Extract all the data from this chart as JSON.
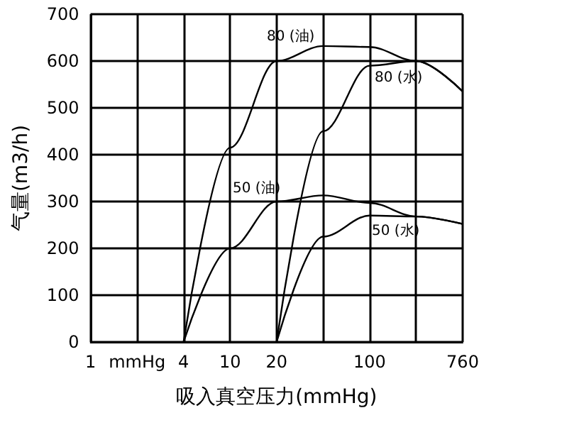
{
  "chart_data": {
    "type": "line",
    "xlabel": "吸入真空压力(mmHg)",
    "ylabel": "气量(m3/h)",
    "categories": [
      "1",
      "mmHg",
      "4",
      "10",
      "20",
      null,
      "100",
      null,
      "760"
    ],
    "ylim": [
      0,
      700
    ],
    "yticks": [
      0,
      100,
      200,
      300,
      400,
      500,
      600,
      700
    ],
    "grid": true,
    "marker": "none",
    "line_style": "solid",
    "series": [
      {
        "color": "#000000",
        "values": [
          null,
          null,
          0,
          415,
          600,
          632,
          630,
          600,
          535
        ]
      },
      {
        "color": "#000000",
        "values": [
          null,
          null,
          null,
          null,
          0,
          450,
          590,
          600,
          535
        ]
      },
      {
        "color": "#000000",
        "values": [
          null,
          null,
          0,
          200,
          300,
          313,
          297,
          268,
          252
        ]
      },
      {
        "color": "#000000",
        "values": [
          null,
          null,
          null,
          null,
          0,
          225,
          270,
          268,
          252
        ]
      }
    ],
    "annotations": [
      "80 (油)",
      "80 (水)",
      "50 (油)",
      "50 (水)"
    ]
  }
}
